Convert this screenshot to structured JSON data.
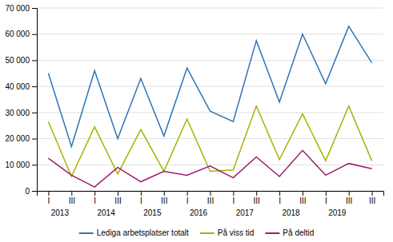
{
  "chart_data": {
    "type": "line",
    "categories": [
      "I",
      "III",
      "I",
      "III",
      "I",
      "III",
      "I",
      "III",
      "I",
      "III",
      "I",
      "III",
      "I",
      "III",
      "III"
    ],
    "category_groups": [
      "2013",
      "2014",
      "2015",
      "2016",
      "2017",
      "2018",
      "2019"
    ],
    "series": [
      {
        "name": "Lediga arbetsplatser totalt",
        "color": "#2e75b6",
        "values": [
          45000,
          17000,
          46000,
          20000,
          43000,
          21000,
          47000,
          30500,
          26500,
          57500,
          34000,
          60000,
          41000,
          63000,
          49000
        ]
      },
      {
        "name": "På viss tid",
        "color": "#a5b400",
        "values": [
          26500,
          5500,
          24500,
          6500,
          23500,
          7500,
          27500,
          7500,
          8000,
          32500,
          12000,
          29500,
          11500,
          32500,
          11500
        ]
      },
      {
        "name": "På deltid",
        "color": "#9b1d6e",
        "values": [
          12500,
          6000,
          1500,
          9000,
          3500,
          7500,
          6000,
          9500,
          5000,
          13000,
          5500,
          15500,
          6000,
          10500,
          8500
        ]
      }
    ],
    "ylim": [
      0,
      70000
    ],
    "yticks": [
      0,
      {
        "value": 10000,
        "label": "10 000"
      },
      {
        "value": 20000,
        "label": "20 000"
      },
      {
        "value": 30000,
        "label": "30 000"
      },
      {
        "value": 40000,
        "label": "40 000"
      },
      {
        "value": 50000,
        "label": "50 000"
      },
      {
        "value": 60000,
        "label": "60 000"
      },
      {
        "value": 70000,
        "label": "70 000"
      }
    ],
    "grid": true,
    "legend": "bottom"
  }
}
